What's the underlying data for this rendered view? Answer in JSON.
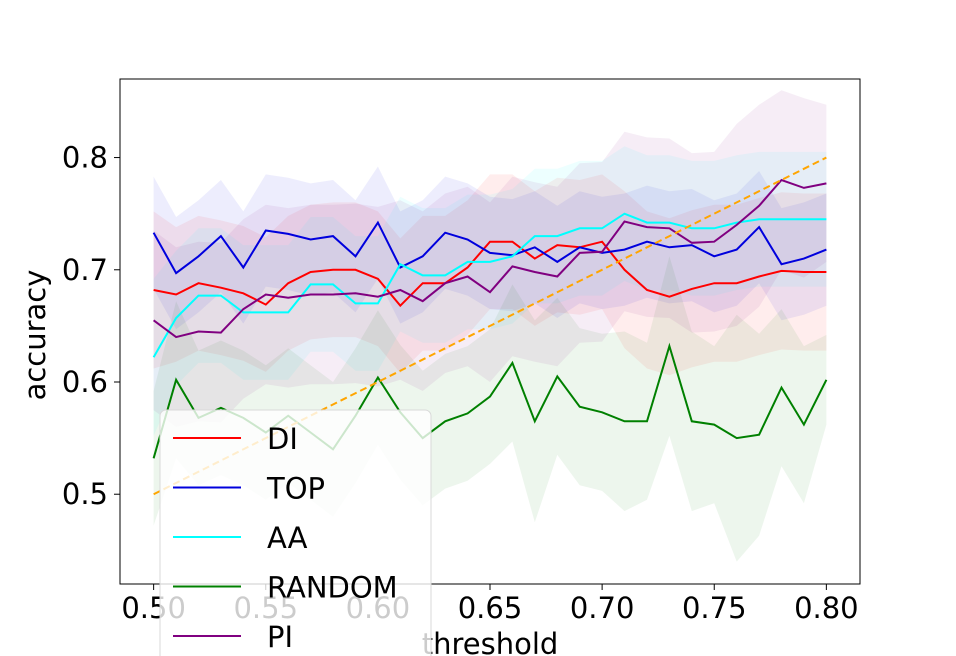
{
  "chart_data": {
    "type": "line",
    "title": "",
    "xlabel": "threshold",
    "ylabel": "accuracy",
    "xlim": [
      0.485,
      0.815
    ],
    "ylim": [
      0.42,
      0.87
    ],
    "xticks": [
      0.5,
      0.55,
      0.6,
      0.65,
      0.7,
      0.75,
      0.8
    ],
    "xtick_labels": [
      "0.50",
      "0.55",
      "0.60",
      "0.65",
      "0.70",
      "0.75",
      "0.80"
    ],
    "yticks": [
      0.5,
      0.6,
      0.7,
      0.8
    ],
    "ytick_labels": [
      "0.5",
      "0.6",
      "0.7",
      "0.8"
    ],
    "grid": false,
    "legend_position": "lower-left",
    "x": [
      0.5,
      0.51,
      0.52,
      0.53,
      0.54,
      0.55,
      0.56,
      0.57,
      0.58,
      0.59,
      0.6,
      0.61,
      0.62,
      0.63,
      0.64,
      0.65,
      0.66,
      0.67,
      0.68,
      0.69,
      0.7,
      0.71,
      0.72,
      0.73,
      0.74,
      0.75,
      0.76,
      0.77,
      0.78,
      0.79,
      0.8
    ],
    "series": [
      {
        "name": "DI",
        "color": "#ff0000",
        "values": [
          0.682,
          0.678,
          0.688,
          0.684,
          0.679,
          0.669,
          0.688,
          0.698,
          0.7,
          0.7,
          0.692,
          0.668,
          0.688,
          0.688,
          0.702,
          0.725,
          0.725,
          0.71,
          0.722,
          0.72,
          0.725,
          0.7,
          0.682,
          0.676,
          0.683,
          0.688,
          0.688,
          0.694,
          0.699,
          0.698,
          0.698
        ],
        "band": [
          0.07,
          0.06,
          0.06,
          0.06,
          0.06,
          0.06,
          0.06,
          0.06,
          0.06,
          0.06,
          0.06,
          0.06,
          0.06,
          0.06,
          0.06,
          0.06,
          0.06,
          0.06,
          0.06,
          0.06,
          0.06,
          0.07,
          0.07,
          0.07,
          0.07,
          0.07,
          0.07,
          0.07,
          0.07,
          0.07,
          0.07
        ]
      },
      {
        "name": "TOP",
        "color": "#0000dd",
        "values": [
          0.733,
          0.697,
          0.712,
          0.73,
          0.702,
          0.735,
          0.732,
          0.727,
          0.73,
          0.712,
          0.742,
          0.702,
          0.712,
          0.733,
          0.727,
          0.715,
          0.713,
          0.72,
          0.707,
          0.72,
          0.715,
          0.718,
          0.725,
          0.72,
          0.722,
          0.712,
          0.718,
          0.738,
          0.705,
          0.71,
          0.718
        ],
        "band": [
          0.05,
          0.05,
          0.05,
          0.05,
          0.05,
          0.05,
          0.05,
          0.05,
          0.05,
          0.05,
          0.05,
          0.05,
          0.05,
          0.05,
          0.05,
          0.05,
          0.05,
          0.05,
          0.05,
          0.05,
          0.05,
          0.05,
          0.05,
          0.05,
          0.05,
          0.05,
          0.05,
          0.05,
          0.05,
          0.05,
          0.05
        ]
      },
      {
        "name": "AA",
        "color": "#00ffff",
        "values": [
          0.622,
          0.657,
          0.677,
          0.677,
          0.662,
          0.662,
          0.662,
          0.687,
          0.687,
          0.67,
          0.67,
          0.705,
          0.695,
          0.695,
          0.707,
          0.707,
          0.712,
          0.73,
          0.73,
          0.737,
          0.737,
          0.75,
          0.742,
          0.742,
          0.737,
          0.737,
          0.742,
          0.745,
          0.745,
          0.745,
          0.745
        ],
        "band": [
          0.07,
          0.06,
          0.06,
          0.06,
          0.06,
          0.06,
          0.06,
          0.06,
          0.06,
          0.06,
          0.06,
          0.06,
          0.06,
          0.06,
          0.06,
          0.06,
          0.06,
          0.06,
          0.06,
          0.06,
          0.06,
          0.06,
          0.06,
          0.06,
          0.06,
          0.06,
          0.06,
          0.06,
          0.06,
          0.06,
          0.06
        ]
      },
      {
        "name": "RANDOM",
        "color": "#008000",
        "values": [
          0.532,
          0.602,
          0.568,
          0.577,
          0.568,
          0.555,
          0.57,
          0.555,
          0.54,
          0.57,
          0.604,
          0.573,
          0.55,
          0.565,
          0.572,
          0.587,
          0.617,
          0.565,
          0.605,
          0.578,
          0.573,
          0.565,
          0.565,
          0.632,
          0.565,
          0.562,
          0.55,
          0.553,
          0.595,
          0.562,
          0.602
        ],
        "band": [
          0.06,
          0.07,
          0.06,
          0.06,
          0.06,
          0.06,
          0.06,
          0.06,
          0.06,
          0.06,
          0.06,
          0.06,
          0.06,
          0.06,
          0.06,
          0.06,
          0.07,
          0.09,
          0.07,
          0.07,
          0.07,
          0.08,
          0.07,
          0.08,
          0.08,
          0.07,
          0.11,
          0.09,
          0.07,
          0.07,
          0.04
        ]
      },
      {
        "name": "PI",
        "color": "#800080",
        "values": [
          0.655,
          0.64,
          0.645,
          0.644,
          0.665,
          0.678,
          0.675,
          0.678,
          0.678,
          0.679,
          0.676,
          0.682,
          0.672,
          0.688,
          0.694,
          0.68,
          0.703,
          0.698,
          0.694,
          0.715,
          0.716,
          0.743,
          0.738,
          0.737,
          0.724,
          0.725,
          0.74,
          0.757,
          0.78,
          0.773,
          0.777
        ],
        "band": [
          0.08,
          0.08,
          0.08,
          0.08,
          0.08,
          0.08,
          0.08,
          0.08,
          0.08,
          0.08,
          0.08,
          0.08,
          0.08,
          0.08,
          0.08,
          0.08,
          0.08,
          0.08,
          0.08,
          0.08,
          0.08,
          0.08,
          0.08,
          0.08,
          0.08,
          0.08,
          0.09,
          0.09,
          0.08,
          0.08,
          0.07
        ]
      }
    ],
    "reference_line": {
      "x": [
        0.5,
        0.8
      ],
      "y": [
        0.5,
        0.8
      ],
      "color": "#ffa500",
      "style": "dashed"
    }
  }
}
